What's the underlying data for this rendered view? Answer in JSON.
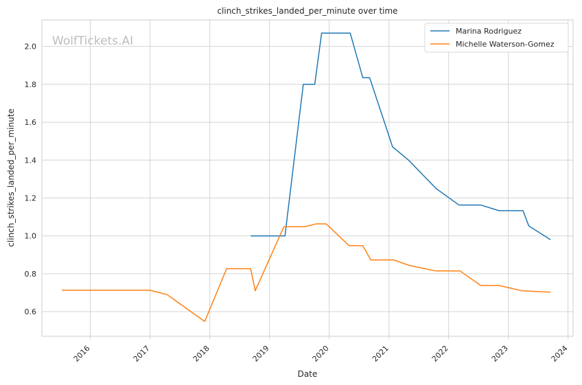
{
  "chart_data": {
    "type": "line",
    "title": "clinch_strikes_landed_per_minute over time",
    "xlabel": "Date",
    "ylabel": "clinch_strikes_landed_per_minute",
    "watermark": "WolfTickets.AI",
    "xlim": [
      "2015-03-11",
      "2024-02-01"
    ],
    "ylim": [
      0.47,
      2.14
    ],
    "x_ticks": [
      "2016-01-01",
      "2017-01-01",
      "2018-01-01",
      "2019-01-01",
      "2020-01-01",
      "2021-01-01",
      "2022-01-01",
      "2023-01-01",
      "2024-01-01"
    ],
    "x_tick_labels": [
      "2016",
      "2017",
      "2018",
      "2019",
      "2020",
      "2021",
      "2022",
      "2023",
      "2024"
    ],
    "y_ticks": [
      0.6,
      0.8,
      1.0,
      1.2,
      1.4,
      1.6,
      1.8,
      2.0
    ],
    "y_tick_labels": [
      "0.6",
      "0.8",
      "1.0",
      "1.2",
      "1.4",
      "1.6",
      "1.8",
      "2.0"
    ],
    "grid": true,
    "legend_position": "top-right",
    "series": [
      {
        "name": "Marina Rodriguez",
        "color": "#1f77b4",
        "points": [
          [
            "2018-09-08",
            1.0
          ],
          [
            "2019-03-02",
            1.0
          ],
          [
            "2019-04-06",
            1.0
          ],
          [
            "2019-07-27",
            1.8
          ],
          [
            "2019-10-05",
            1.8
          ],
          [
            "2019-11-16",
            2.07
          ],
          [
            "2020-05-09",
            2.07
          ],
          [
            "2020-07-25",
            1.835
          ],
          [
            "2020-09-05",
            1.835
          ],
          [
            "2021-01-23",
            1.47
          ],
          [
            "2021-05-01",
            1.4
          ],
          [
            "2021-10-16",
            1.25
          ],
          [
            "2022-03-05",
            1.163
          ],
          [
            "2022-07-16",
            1.163
          ],
          [
            "2022-11-05",
            1.133
          ],
          [
            "2023-04-01",
            1.133
          ],
          [
            "2023-05-06",
            1.053
          ],
          [
            "2023-09-16",
            0.98
          ]
        ]
      },
      {
        "name": "Michelle Waterson-Gomez",
        "color": "#ff7f0e",
        "points": [
          [
            "2015-07-12",
            0.713
          ],
          [
            "2016-12-30",
            0.713
          ],
          [
            "2017-04-15",
            0.69
          ],
          [
            "2017-12-01",
            0.548
          ],
          [
            "2018-04-14",
            0.827
          ],
          [
            "2018-09-08",
            0.827
          ],
          [
            "2018-10-06",
            0.71
          ],
          [
            "2019-03-30",
            1.048
          ],
          [
            "2019-08-03",
            1.048
          ],
          [
            "2019-10-12",
            1.063
          ],
          [
            "2019-12-14",
            1.063
          ],
          [
            "2020-05-02",
            0.948
          ],
          [
            "2020-07-25",
            0.948
          ],
          [
            "2020-09-12",
            0.873
          ],
          [
            "2021-01-30",
            0.873
          ],
          [
            "2021-05-08",
            0.843
          ],
          [
            "2021-10-16",
            0.815
          ],
          [
            "2022-03-12",
            0.815
          ],
          [
            "2022-07-16",
            0.738
          ],
          [
            "2022-11-05",
            0.738
          ],
          [
            "2023-03-25",
            0.71
          ],
          [
            "2023-09-16",
            0.703
          ]
        ]
      }
    ]
  }
}
